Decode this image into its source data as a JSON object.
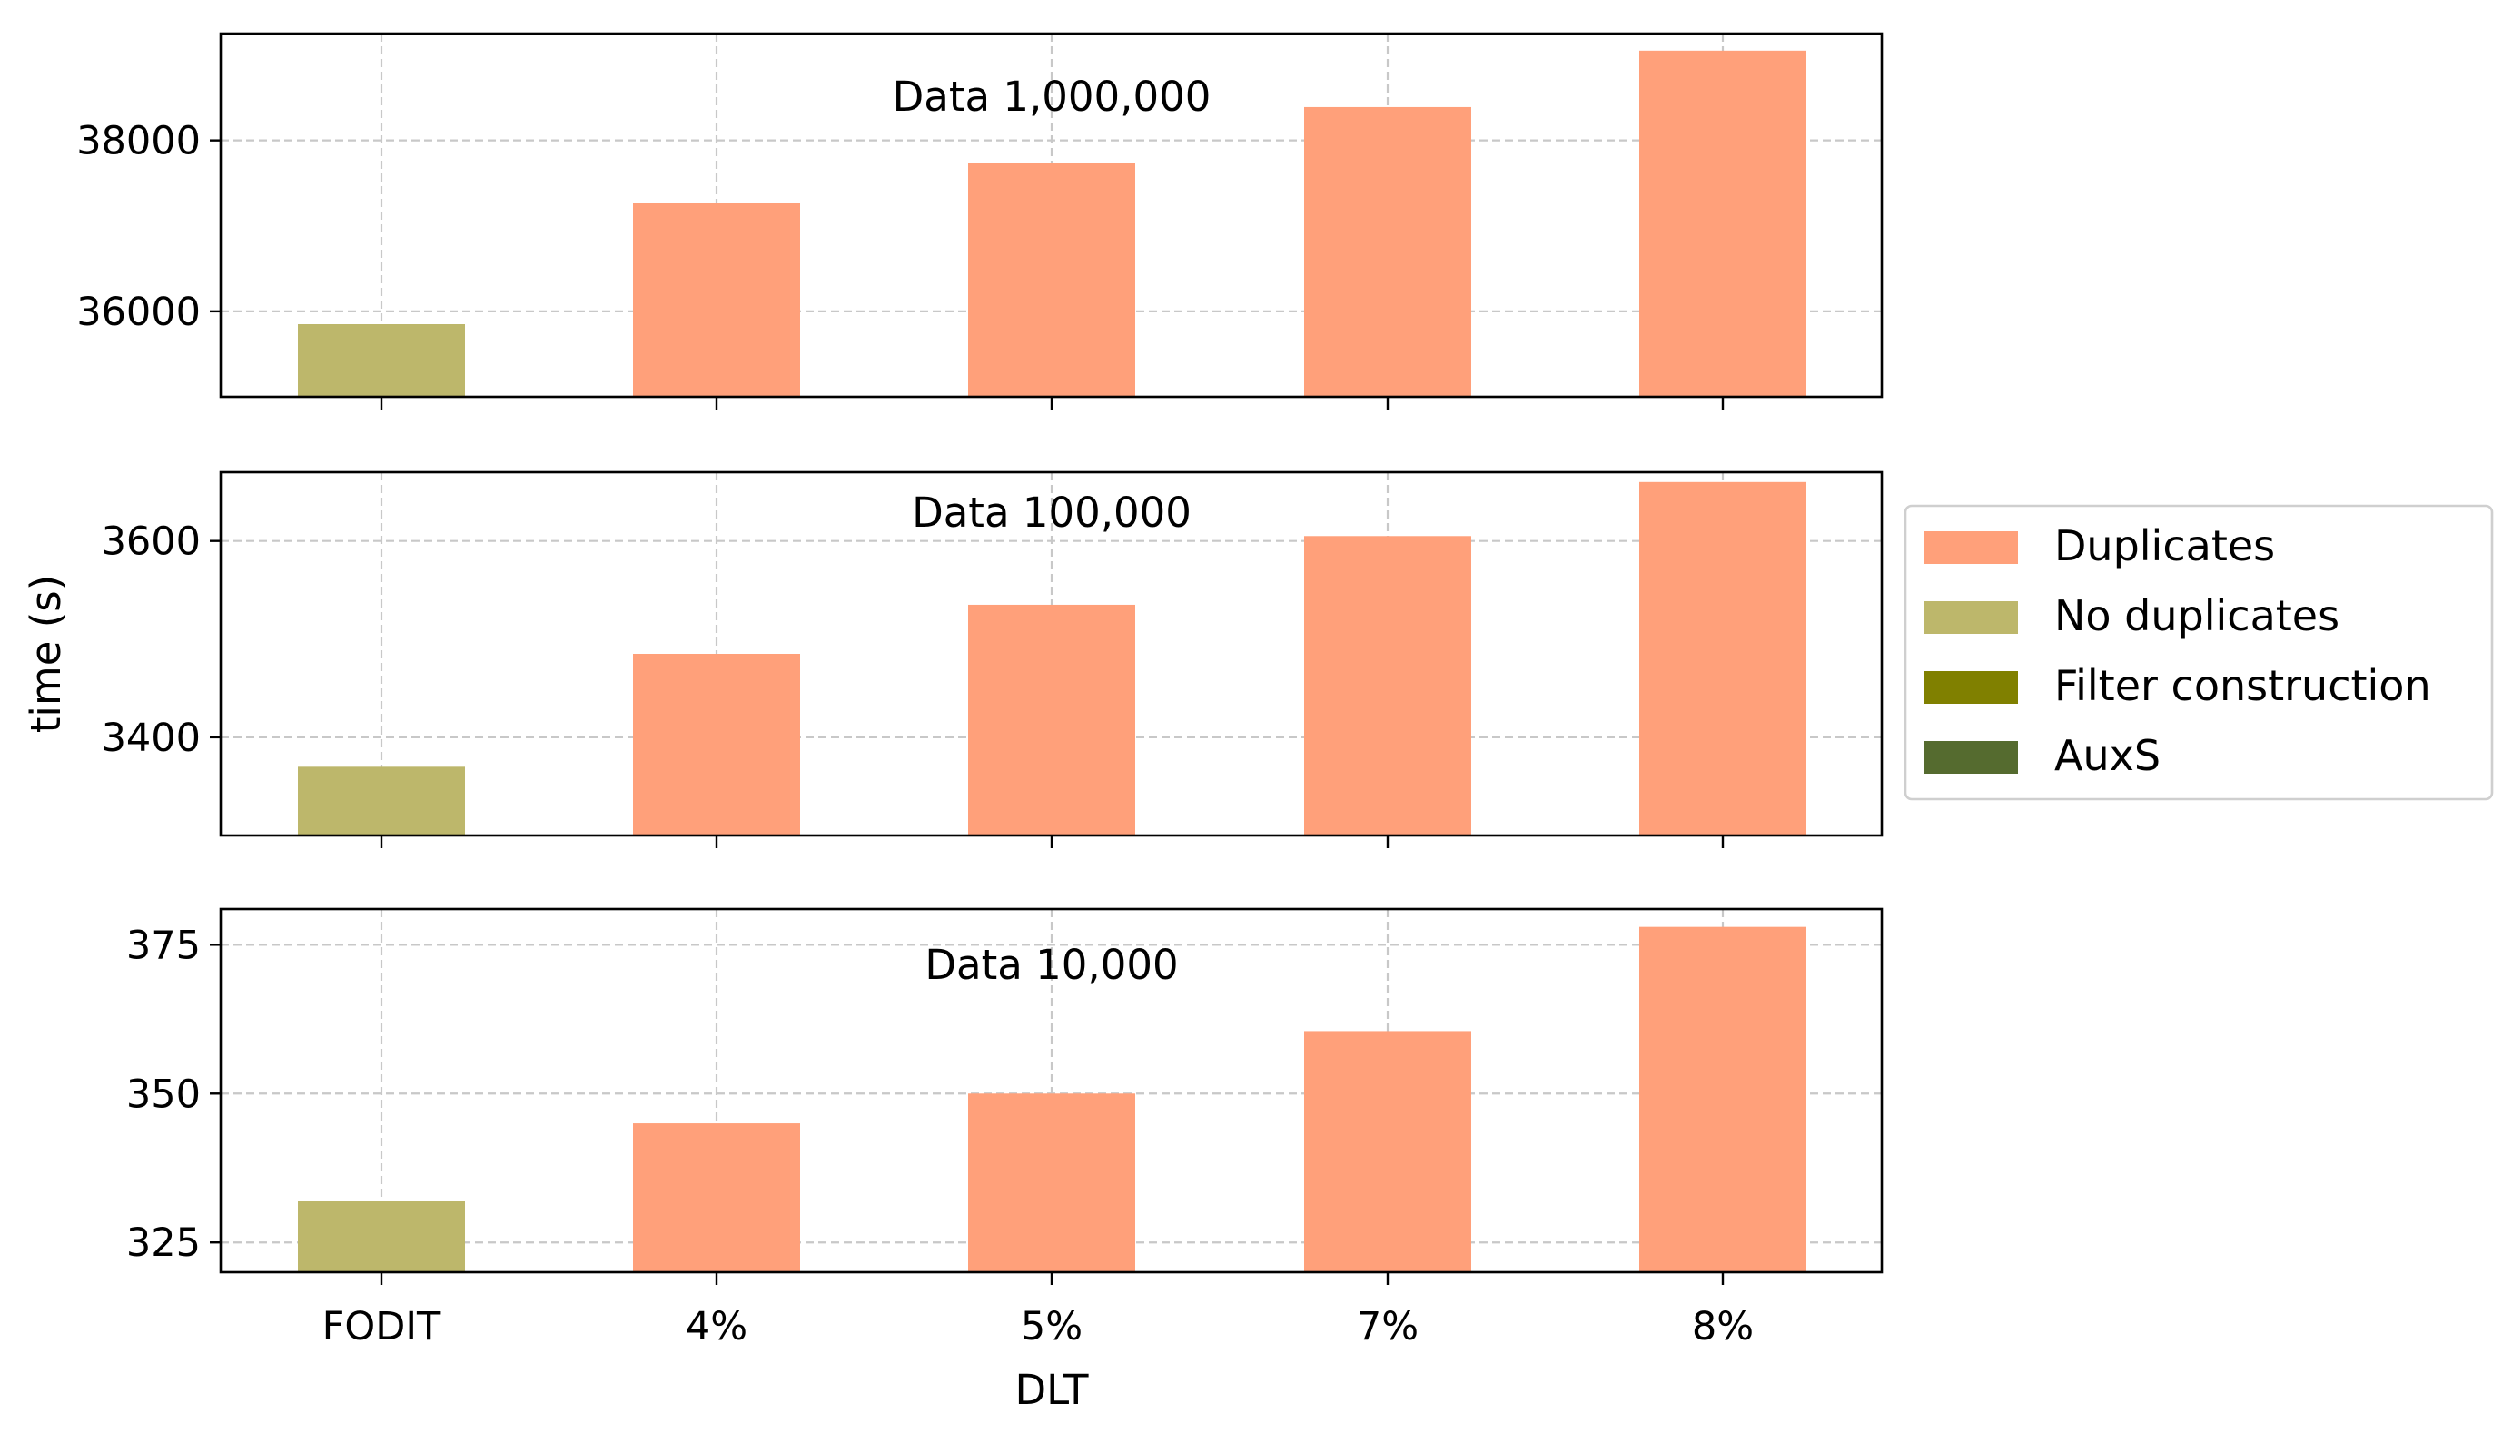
{
  "chart_data": {
    "type": "bar",
    "xlabel": "DLT",
    "ylabel": "time (s)",
    "categories": [
      "FODIT",
      "4%",
      "5%",
      "7%",
      "8%"
    ],
    "grid": true,
    "legend": {
      "placement": "right",
      "entries": [
        {
          "label": "Duplicates",
          "color": "#FFA07A"
        },
        {
          "label": "No duplicates",
          "color": "#BDB76B"
        },
        {
          "label": "Filter construction",
          "color": "#808000"
        },
        {
          "label": "AuxS",
          "color": "#556B2F"
        }
      ]
    },
    "panels": [
      {
        "annotation": "Data 1,000,000",
        "ylim": [
          35000,
          39250
        ],
        "yticks": [
          36000,
          38000
        ],
        "ytick_labels": [
          "36000",
          "38000"
        ],
        "values": [
          35850,
          37270,
          37740,
          38390,
          39050
        ],
        "series_index": [
          "No duplicates",
          "Duplicates",
          "Duplicates",
          "Duplicates",
          "Duplicates"
        ]
      },
      {
        "annotation": "Data 100,000",
        "ylim": [
          3300,
          3670
        ],
        "yticks": [
          3400,
          3600
        ],
        "ytick_labels": [
          "3400",
          "3600"
        ],
        "values": [
          3370,
          3485,
          3535,
          3605,
          3660
        ],
        "series_index": [
          "No duplicates",
          "Duplicates",
          "Duplicates",
          "Duplicates",
          "Duplicates"
        ]
      },
      {
        "annotation": "Data 10,000",
        "ylim": [
          320,
          381
        ],
        "yticks": [
          325,
          350,
          375
        ],
        "ytick_labels": [
          "325",
          "350",
          "375"
        ],
        "values": [
          332,
          345,
          350,
          360.5,
          378
        ],
        "series_index": [
          "No duplicates",
          "Duplicates",
          "Duplicates",
          "Duplicates",
          "Duplicates"
        ]
      }
    ]
  }
}
